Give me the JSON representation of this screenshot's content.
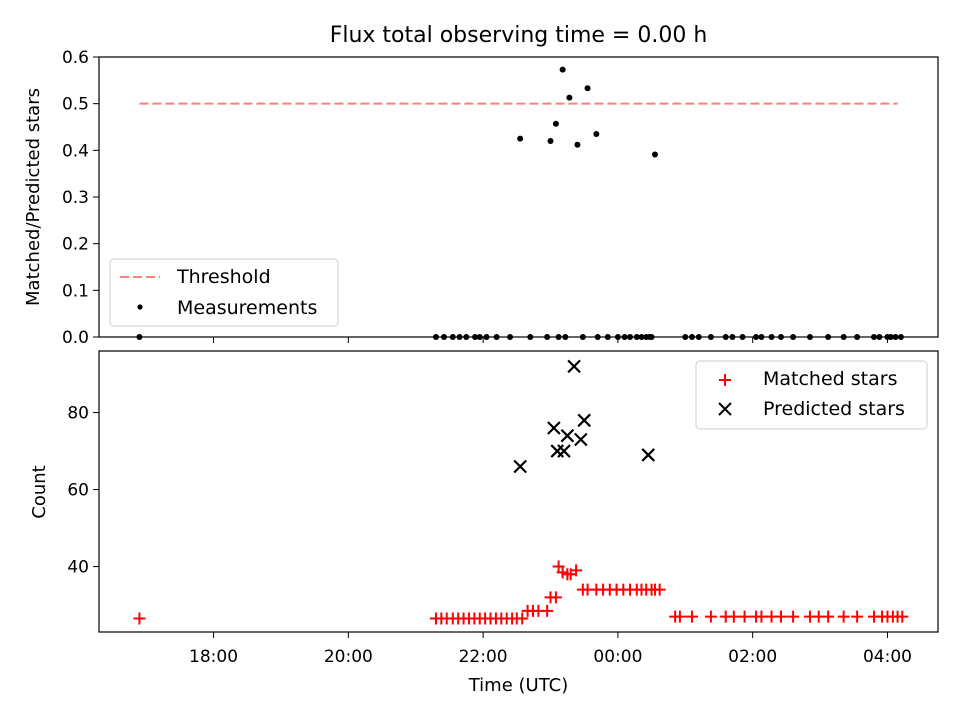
{
  "chart_data": [
    {
      "type": "scatter",
      "title": "Flux total observing time = 0.00 h",
      "xlabel": "",
      "ylabel": "Matched/Predicted stars",
      "ylim": [
        0,
        0.6
      ],
      "xlim": [
        16.3,
        28.75
      ],
      "yticks": [
        0,
        0.1,
        0.2,
        0.3,
        0.4,
        0.5,
        0.6
      ],
      "ytick_labels": [
        "0.0",
        "0.1",
        "0.2",
        "0.3",
        "0.4",
        "0.5",
        "0.6"
      ],
      "grid": false,
      "legend_position": "lower-left",
      "threshold": {
        "name": "Threshold",
        "value": 0.5,
        "x_range": [
          16.9,
          28.15
        ],
        "color": "#ff7f7f"
      },
      "series": [
        {
          "name": "Measurements",
          "color": "#000000",
          "x": [
            16.9,
            21.3,
            21.42,
            21.55,
            21.65,
            21.75,
            21.88,
            21.95,
            22.05,
            22.2,
            22.4,
            22.55,
            22.7,
            22.95,
            23.0,
            23.08,
            23.12,
            23.18,
            23.22,
            23.28,
            23.4,
            23.48,
            23.55,
            23.68,
            23.7,
            23.85,
            24.0,
            24.1,
            24.18,
            24.28,
            24.35,
            24.42,
            24.47,
            24.5,
            24.55,
            25.0,
            25.1,
            25.2,
            25.38,
            25.6,
            25.7,
            25.85,
            26.05,
            26.13,
            26.28,
            26.42,
            26.6,
            26.85,
            27.12,
            27.35,
            27.55,
            27.8,
            27.88,
            28.0,
            28.05,
            28.12,
            28.2
          ],
          "y": [
            0,
            0,
            0,
            0,
            0,
            0,
            0,
            0,
            0,
            0,
            0,
            0.425,
            0,
            0,
            0.42,
            0.457,
            0,
            0.573,
            0,
            0.513,
            0.412,
            0,
            0.533,
            0.435,
            0,
            0,
            0,
            0,
            0,
            0,
            0,
            0,
            0,
            0,
            0.391,
            0,
            0,
            0,
            0,
            0,
            0,
            0,
            0,
            0,
            0,
            0,
            0,
            0,
            0,
            0,
            0,
            0,
            0,
            0,
            0,
            0,
            0
          ]
        }
      ]
    },
    {
      "type": "scatter",
      "title": "",
      "xlabel": "Time (UTC)",
      "ylabel": "Count",
      "ylim": [
        23,
        96
      ],
      "xlim": [
        16.3,
        28.75
      ],
      "yticks": [
        40,
        60,
        80
      ],
      "ytick_labels": [
        "40",
        "60",
        "80"
      ],
      "xticks": [
        18,
        20,
        22,
        24,
        26,
        28
      ],
      "xtick_labels": [
        "18:00",
        "20:00",
        "22:00",
        "00:00",
        "02:00",
        "04:00"
      ],
      "grid": false,
      "legend_position": "upper-right",
      "series": [
        {
          "name": "Matched stars",
          "marker": "+",
          "color": "#ff0000",
          "x": [
            16.9,
            21.3,
            21.38,
            21.46,
            21.55,
            21.63,
            21.71,
            21.79,
            21.87,
            21.95,
            22.03,
            22.11,
            22.19,
            22.27,
            22.35,
            22.43,
            22.5,
            22.58,
            22.66,
            22.74,
            22.82,
            22.95,
            23.0,
            23.08,
            23.12,
            23.18,
            23.25,
            23.3,
            23.38,
            23.48,
            23.55,
            23.68,
            23.78,
            23.88,
            23.98,
            24.08,
            24.18,
            24.28,
            24.35,
            24.42,
            24.5,
            24.55,
            24.62,
            24.85,
            24.92,
            25.1,
            25.38,
            25.6,
            25.72,
            25.88,
            26.05,
            26.13,
            26.28,
            26.42,
            26.6,
            26.85,
            26.98,
            27.12,
            27.35,
            27.55,
            27.8,
            27.92,
            28.0,
            28.08,
            28.15,
            28.22
          ],
          "y": [
            26.5,
            26.5,
            26.5,
            26.5,
            26.5,
            26.5,
            26.5,
            26.5,
            26.5,
            26.5,
            26.5,
            26.5,
            26.5,
            26.5,
            26.5,
            26.5,
            26.5,
            26.5,
            28.5,
            28.5,
            28.5,
            28.5,
            32.0,
            32.0,
            40.0,
            38.5,
            38.0,
            38.0,
            39.0,
            34.0,
            34.0,
            34.0,
            34.0,
            34.0,
            34.0,
            34.0,
            34.0,
            34.0,
            34.0,
            34.0,
            34.0,
            34.0,
            34.0,
            27.0,
            27.0,
            27.0,
            27.0,
            27.0,
            27.0,
            27.0,
            27.0,
            27.0,
            27.0,
            27.0,
            27.0,
            27.0,
            27.0,
            27.0,
            27.0,
            27.0,
            27.0,
            27.0,
            27.0,
            27.0,
            27.0,
            27.0
          ]
        },
        {
          "name": "Predicted stars",
          "marker": "x",
          "color": "#000000",
          "x": [
            22.55,
            23.05,
            23.1,
            23.2,
            23.25,
            23.35,
            23.45,
            23.5,
            24.45
          ],
          "y": [
            66.0,
            76.0,
            70.0,
            70.0,
            74.0,
            92.0,
            73.0,
            78.0,
            69.0
          ]
        }
      ]
    }
  ]
}
